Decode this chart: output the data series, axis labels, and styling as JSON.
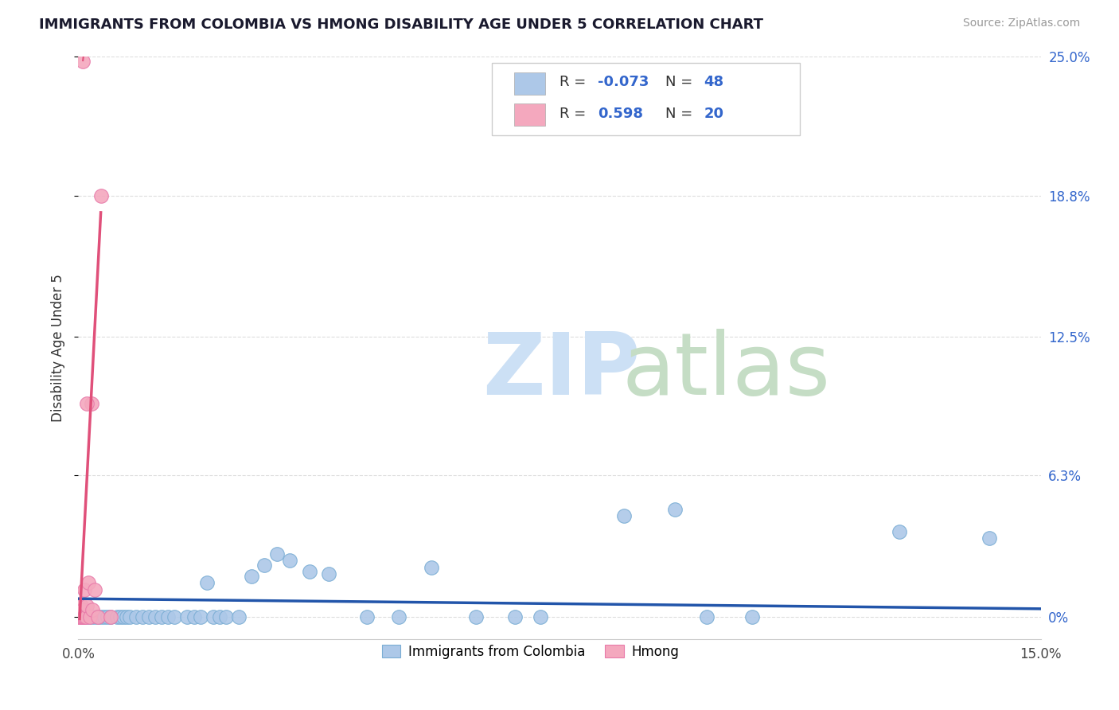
{
  "title": "IMMIGRANTS FROM COLOMBIA VS HMONG DISABILITY AGE UNDER 5 CORRELATION CHART",
  "source": "Source: ZipAtlas.com",
  "ylabel": "Disability Age Under 5",
  "xlim": [
    0.0,
    15.0
  ],
  "ylim": [
    -1.0,
    25.0
  ],
  "ytick_labels_right": [
    "0%",
    "6.3%",
    "12.5%",
    "18.8%",
    "25.0%"
  ],
  "ytick_values_right": [
    0.0,
    6.3,
    12.5,
    18.8,
    25.0
  ],
  "legend_labels": [
    "Immigrants from Colombia",
    "Hmong"
  ],
  "colombia_color": "#adc8e8",
  "colombia_edge_color": "#7aadd4",
  "hmong_color": "#f4a8be",
  "hmong_edge_color": "#e87aaa",
  "colombia_trend_color": "#2255aa",
  "hmong_trend_color": "#e0507a",
  "background_color": "#ffffff",
  "grid_color": "#dddddd",
  "colombia_x": [
    0.05,
    0.1,
    0.15,
    0.2,
    0.25,
    0.3,
    0.35,
    0.4,
    0.45,
    0.5,
    0.6,
    0.65,
    0.7,
    0.75,
    0.8,
    0.9,
    1.0,
    1.1,
    1.2,
    1.3,
    1.4,
    1.5,
    1.7,
    1.8,
    1.9,
    2.0,
    2.1,
    2.2,
    2.3,
    2.5,
    2.7,
    2.9,
    3.1,
    3.3,
    3.6,
    3.9,
    4.5,
    5.0,
    5.5,
    6.2,
    6.8,
    7.2,
    8.5,
    9.3,
    9.8,
    10.5,
    12.8,
    14.2
  ],
  "colombia_y": [
    0.0,
    0.0,
    0.0,
    0.0,
    0.0,
    0.0,
    0.0,
    0.0,
    0.0,
    0.0,
    0.0,
    0.0,
    0.0,
    0.0,
    0.0,
    0.0,
    0.0,
    0.0,
    0.0,
    0.0,
    0.0,
    0.0,
    0.0,
    0.0,
    0.0,
    1.5,
    0.0,
    0.0,
    0.0,
    0.0,
    1.8,
    2.3,
    2.8,
    2.5,
    2.0,
    1.9,
    0.0,
    0.0,
    2.2,
    0.0,
    0.0,
    0.0,
    4.5,
    4.8,
    0.0,
    0.0,
    3.8,
    3.5
  ],
  "hmong_x": [
    0.0,
    0.02,
    0.03,
    0.04,
    0.05,
    0.06,
    0.07,
    0.08,
    0.09,
    0.1,
    0.12,
    0.13,
    0.15,
    0.18,
    0.2,
    0.22,
    0.25,
    0.3,
    0.35,
    0.5
  ],
  "hmong_y": [
    0.0,
    0.0,
    0.3,
    0.0,
    0.5,
    0.0,
    0.3,
    0.0,
    0.0,
    1.2,
    0.0,
    0.5,
    1.5,
    0.0,
    9.5,
    0.3,
    1.2,
    0.0,
    18.8,
    0.0
  ],
  "hmong_outlier_x": 0.07,
  "hmong_outlier_y": 24.8,
  "hmong_10pct_x": 0.13,
  "hmong_10pct_y": 9.5
}
